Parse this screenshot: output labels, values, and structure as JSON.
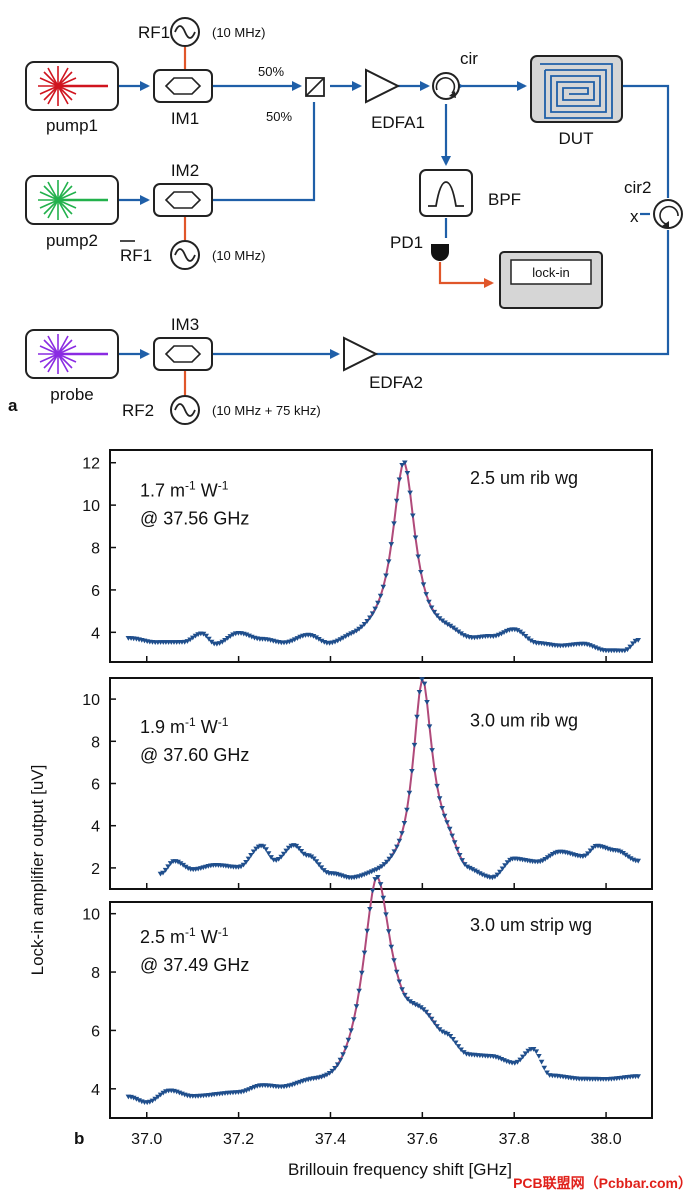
{
  "diagram": {
    "panel_label": "a",
    "sources": {
      "pump1": "pump1",
      "pump2": "pump2",
      "probe": "probe"
    },
    "modulators": {
      "im1": "IM1",
      "im2": "IM2",
      "im3": "IM3"
    },
    "rf": {
      "rf1": "RF1",
      "rf1_freq": "(10 MHz)",
      "rf1_bar": "RF1",
      "rf1_bar_freq": "(10 MHz)",
      "rf2": "RF2",
      "rf2_freq": "(10 MHz + 75 kHz)"
    },
    "coupler": {
      "upper_ratio": "50%",
      "lower_ratio": "50%"
    },
    "edfa1": "EDFA1",
    "edfa2": "EDFA2",
    "cir": "cir",
    "cir2": "cir2",
    "cir2_port": "x",
    "dut": "DUT",
    "bpf": "BPF",
    "pd1": "PD1",
    "lockin": "lock-in",
    "colors": {
      "fiber": "#1f5fa8",
      "electrical": "#e0562a",
      "pump1": "#d0141e",
      "pump2": "#22b14c",
      "probe": "#8a2be2"
    }
  },
  "chart_data": {
    "type": "line",
    "panel_label": "b",
    "xlabel": "Brillouin frequency shift [GHz]",
    "ylabel": "Lock-in amplifier output [uV]",
    "xlim": [
      36.92,
      38.1
    ],
    "x_ticks": [
      "37.0",
      "37.2",
      "37.4",
      "37.6",
      "37.8",
      "38.0"
    ],
    "x_tick_values": [
      37.0,
      37.2,
      37.4,
      37.6,
      37.8,
      38.0
    ],
    "colors": {
      "marker": "#1f4e8c",
      "fit": "#b04a7a"
    },
    "panels": [
      {
        "label": "2.5 um rib wg",
        "gain_value": "1.7",
        "gain_unit_m": "m",
        "gain_exp_m": "-1",
        "gain_unit_w": "W",
        "gain_exp_w": "-1",
        "center": "@ 37.56 GHz",
        "ylim": [
          2.6,
          12.6
        ],
        "y_ticks": [
          "4",
          "6",
          "8",
          "10",
          "12"
        ],
        "y_tick_values": [
          4,
          6,
          8,
          10,
          12
        ],
        "peak": 37.56,
        "height": 8.6,
        "width": 0.03,
        "baseline": [
          [
            36.96,
            3.7
          ],
          [
            37.02,
            3.5
          ],
          [
            37.08,
            3.5
          ],
          [
            37.12,
            3.9
          ],
          [
            37.15,
            3.4
          ],
          [
            37.2,
            3.9
          ],
          [
            37.25,
            3.6
          ],
          [
            37.3,
            3.4
          ],
          [
            37.35,
            3.7
          ],
          [
            37.4,
            3.2
          ],
          [
            37.45,
            3.4
          ],
          [
            37.5,
            3.5
          ],
          [
            37.6,
            3.4
          ],
          [
            37.66,
            3.6
          ],
          [
            37.7,
            3.4
          ],
          [
            37.75,
            3.6
          ],
          [
            37.8,
            4.0
          ],
          [
            37.85,
            3.4
          ],
          [
            37.9,
            3.3
          ],
          [
            37.95,
            3.4
          ],
          [
            38.0,
            3.1
          ],
          [
            38.04,
            3.1
          ],
          [
            38.07,
            3.6
          ]
        ],
        "label_y": 11.0,
        "gain_y": 10.4,
        "center_y": 9.0
      },
      {
        "label": "3.0 um rib wg",
        "gain_value": "1.9",
        "gain_unit_m": "m",
        "gain_exp_m": "-1",
        "gain_unit_w": "W",
        "gain_exp_w": "-1",
        "center": "@ 37.60 GHz",
        "ylim": [
          1.0,
          11.0
        ],
        "y_ticks": [
          "2",
          "4",
          "6",
          "8",
          "10"
        ],
        "y_tick_values": [
          2,
          4,
          6,
          8,
          10
        ],
        "peak": 37.6,
        "height": 8.9,
        "width": 0.025,
        "baseline": [
          [
            37.03,
            1.7
          ],
          [
            37.06,
            2.3
          ],
          [
            37.1,
            1.9
          ],
          [
            37.15,
            2.1
          ],
          [
            37.2,
            2.0
          ],
          [
            37.25,
            3.0
          ],
          [
            37.28,
            2.3
          ],
          [
            37.32,
            3.0
          ],
          [
            37.35,
            2.5
          ],
          [
            37.4,
            1.6
          ],
          [
            37.45,
            1.3
          ],
          [
            37.5,
            1.4
          ],
          [
            37.55,
            1.5
          ],
          [
            37.65,
            2.6
          ],
          [
            37.7,
            1.5
          ],
          [
            37.75,
            1.3
          ],
          [
            37.8,
            2.3
          ],
          [
            37.85,
            2.2
          ],
          [
            37.9,
            2.7
          ],
          [
            37.95,
            2.5
          ],
          [
            37.98,
            3.0
          ],
          [
            38.02,
            2.8
          ],
          [
            38.07,
            2.3
          ]
        ],
        "label_y": 8.7,
        "gain_y": 8.4,
        "center_y": 7.3
      },
      {
        "label": "3.0 um strip wg",
        "gain_value": "2.5",
        "gain_unit_m": "m",
        "gain_exp_m": "-1",
        "gain_unit_w": "W",
        "gain_exp_w": "-1",
        "center": "@ 37.49 GHz",
        "ylim": [
          3.0,
          10.4
        ],
        "y_ticks": [
          "4",
          "6",
          "8",
          "10"
        ],
        "y_tick_values": [
          4,
          6,
          8,
          10
        ],
        "peak": 37.5,
        "height": 6.0,
        "width": 0.035,
        "baseline": [
          [
            36.96,
            3.7
          ],
          [
            37.0,
            3.5
          ],
          [
            37.05,
            3.9
          ],
          [
            37.1,
            3.7
          ],
          [
            37.2,
            3.8
          ],
          [
            37.25,
            4.0
          ],
          [
            37.3,
            3.9
          ],
          [
            37.35,
            4.0
          ],
          [
            37.4,
            3.9
          ],
          [
            37.55,
            5.7
          ],
          [
            37.6,
            6.1
          ],
          [
            37.65,
            5.6
          ],
          [
            37.7,
            5.0
          ],
          [
            37.75,
            5.0
          ],
          [
            37.8,
            4.8
          ],
          [
            37.84,
            5.3
          ],
          [
            37.88,
            4.4
          ],
          [
            37.95,
            4.3
          ],
          [
            38.0,
            4.3
          ],
          [
            38.07,
            4.4
          ]
        ],
        "label_y": 9.4,
        "gain_y": 9.0,
        "center_y": 8.0
      }
    ]
  },
  "watermark": "PCB联盟网（Pcbbar.com）"
}
